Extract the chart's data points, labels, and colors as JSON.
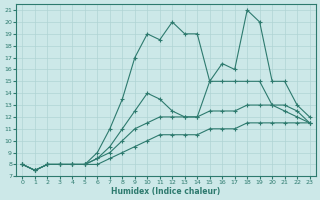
{
  "xlabel": "Humidex (Indice chaleur)",
  "background_color": "#cce8e8",
  "grid_color": "#b0d4d4",
  "line_color": "#2d7a6e",
  "xlim": [
    -0.5,
    23.5
  ],
  "ylim": [
    7,
    21.5
  ],
  "yticks": [
    7,
    8,
    9,
    10,
    11,
    12,
    13,
    14,
    15,
    16,
    17,
    18,
    19,
    20,
    21
  ],
  "xticks": [
    0,
    1,
    2,
    3,
    4,
    5,
    6,
    7,
    8,
    9,
    10,
    11,
    12,
    13,
    14,
    15,
    16,
    17,
    18,
    19,
    20,
    21,
    22,
    23
  ],
  "lines": [
    {
      "x": [
        0,
        1,
        2,
        3,
        4,
        5,
        6,
        7,
        8,
        9,
        10,
        11,
        12,
        13,
        14,
        15,
        16,
        17,
        18,
        19,
        20,
        21,
        22,
        23
      ],
      "y": [
        8,
        7.5,
        8,
        8,
        8,
        8,
        9,
        11,
        13.5,
        17,
        19,
        18.5,
        20,
        19,
        19,
        15,
        16.5,
        16,
        21,
        20,
        15,
        15,
        13,
        12
      ]
    },
    {
      "x": [
        0,
        1,
        2,
        3,
        4,
        5,
        6,
        7,
        8,
        9,
        10,
        11,
        12,
        13,
        14,
        15,
        16,
        17,
        18,
        19,
        20,
        21,
        22,
        23
      ],
      "y": [
        8,
        7.5,
        8,
        8,
        8,
        8,
        8.5,
        9.5,
        11,
        12.5,
        14,
        13.5,
        12.5,
        12.0,
        12.0,
        15,
        15.0,
        15,
        15.0,
        15,
        13,
        12.5,
        12,
        11.5
      ]
    },
    {
      "x": [
        0,
        1,
        2,
        3,
        4,
        5,
        6,
        7,
        8,
        9,
        10,
        11,
        12,
        13,
        14,
        15,
        16,
        17,
        18,
        19,
        20,
        21,
        22,
        23
      ],
      "y": [
        8,
        7.5,
        8,
        8,
        8,
        8,
        8.5,
        9,
        10,
        11,
        11.5,
        12,
        12,
        12,
        12,
        12.5,
        12.5,
        12.5,
        13,
        13,
        13,
        13,
        12.5,
        11.5
      ]
    },
    {
      "x": [
        0,
        1,
        2,
        3,
        4,
        5,
        6,
        7,
        8,
        9,
        10,
        11,
        12,
        13,
        14,
        15,
        16,
        17,
        18,
        19,
        20,
        21,
        22,
        23
      ],
      "y": [
        8,
        7.5,
        8,
        8,
        8,
        8,
        8,
        8.5,
        9,
        9.5,
        10,
        10.5,
        10.5,
        10.5,
        10.5,
        11,
        11,
        11,
        11.5,
        11.5,
        11.5,
        11.5,
        11.5,
        11.5
      ]
    }
  ]
}
